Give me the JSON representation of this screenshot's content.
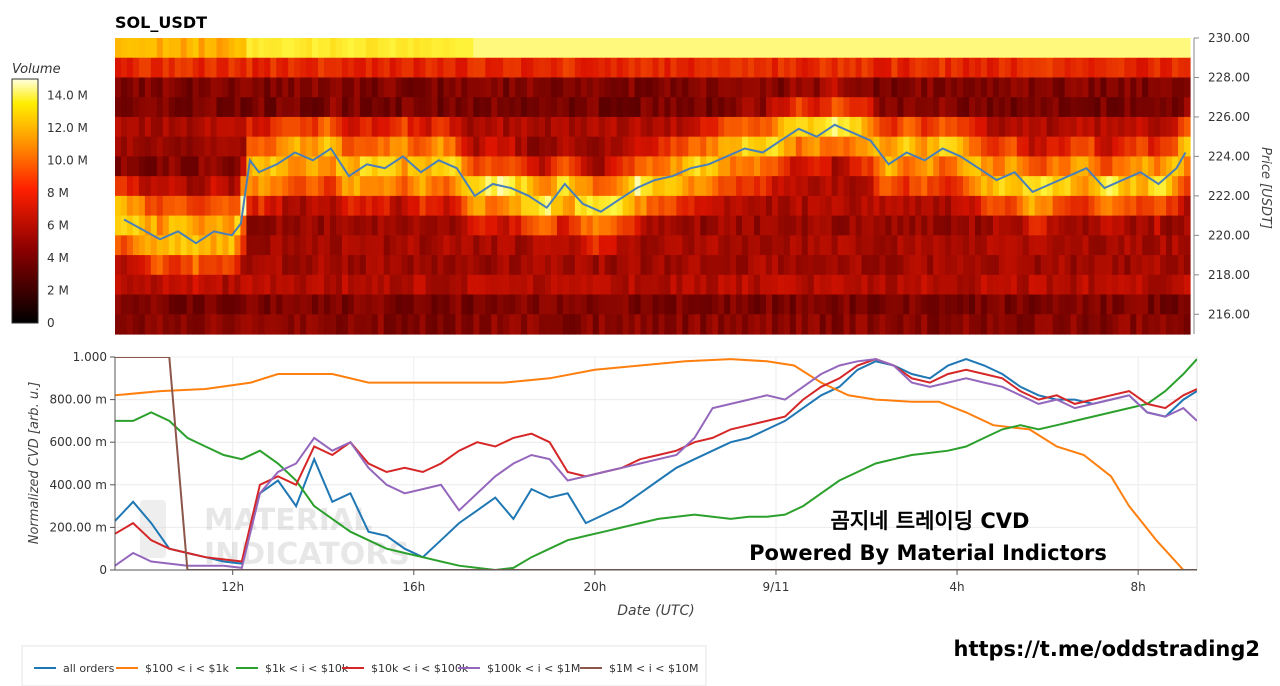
{
  "title": "SOL_USDT",
  "watermark": {
    "line1": "MATERIAL",
    "line2": "INDICATORS"
  },
  "overlay": {
    "line1": "곰지네 트레이딩 CVD",
    "line2": "Powered By Material Indictors"
  },
  "link": "https://t.me/oddstrading2",
  "colors": {
    "all_orders": "#1f77b4",
    "s100_1k": "#ff7f0e",
    "s1k_10k": "#2ca02c",
    "s10k_100k": "#d62728",
    "s100k_1m": "#9467bd",
    "s1m_10m": "#8c564b"
  },
  "chart_data": [
    {
      "type": "heatmap",
      "title": "SOL_USDT",
      "colorbar": {
        "label": "Volume",
        "ticks": [
          "14.0 M",
          "12.0 M",
          "10.0 M",
          "8 M",
          "6 M",
          "4 M",
          "2 M",
          "0"
        ],
        "range": [
          0,
          15
        ]
      },
      "ylabel": "Price [USDT]",
      "ylim": [
        215,
        230
      ],
      "yticks": [
        "230.00",
        "228.00",
        "226.00",
        "224.00",
        "222.00",
        "220.00",
        "218.00",
        "216.00"
      ],
      "price_line": {
        "name": "price",
        "x": [
          9.6,
          10.0,
          10.4,
          10.8,
          11.2,
          11.6,
          12.0,
          12.2,
          12.4,
          12.6,
          13.0,
          13.4,
          13.8,
          14.2,
          14.6,
          15.0,
          15.4,
          15.8,
          16.2,
          16.6,
          17.0,
          17.4,
          17.8,
          18.2,
          18.6,
          19.0,
          19.4,
          19.8,
          20.2,
          20.6,
          21.0,
          21.4,
          21.8,
          22.2,
          22.6,
          23.0,
          23.4,
          23.8,
          24.2,
          24.6,
          25.0,
          25.4,
          25.8,
          26.2,
          26.6,
          27.0,
          27.4,
          27.8,
          28.2,
          28.6,
          29.0,
          29.4,
          29.8,
          30.2,
          30.6,
          31.0,
          31.4,
          31.8,
          32.2,
          32.6,
          33.0,
          33.2
        ],
        "y": [
          220.8,
          220.3,
          219.8,
          220.2,
          219.6,
          220.2,
          220.0,
          220.6,
          223.8,
          223.2,
          223.6,
          224.2,
          223.8,
          224.4,
          223.0,
          223.6,
          223.4,
          224.0,
          223.2,
          223.8,
          223.4,
          222.0,
          222.6,
          222.4,
          222.0,
          221.4,
          222.6,
          221.6,
          221.2,
          221.8,
          222.4,
          222.8,
          223.0,
          223.4,
          223.6,
          224.0,
          224.4,
          224.2,
          224.8,
          225.4,
          225.0,
          225.6,
          225.2,
          224.8,
          223.6,
          224.2,
          223.8,
          224.4,
          224.0,
          223.4,
          222.8,
          223.2,
          222.2,
          222.6,
          223.0,
          223.4,
          222.4,
          222.8,
          223.2,
          222.6,
          223.4,
          224.2
        ]
      }
    },
    {
      "type": "line",
      "xlabel": "Date (UTC)",
      "ylabel": "Normalized CVD [arb. u.]",
      "xlim": [
        9.4,
        33.3
      ],
      "ylim": [
        0,
        1
      ],
      "xticks": [
        {
          "value": 12,
          "label": "12h"
        },
        {
          "value": 16,
          "label": "16h"
        },
        {
          "value": 20,
          "label": "20h"
        },
        {
          "value": 24,
          "label": "9/11"
        },
        {
          "value": 28,
          "label": "4h"
        },
        {
          "value": 32,
          "label": "8h"
        }
      ],
      "yticks": [
        {
          "value": 1.0,
          "label": "1.000"
        },
        {
          "value": 0.8,
          "label": "800.00 m"
        },
        {
          "value": 0.6,
          "label": "600.00 m"
        },
        {
          "value": 0.4,
          "label": "400.00 m"
        },
        {
          "value": 0.2,
          "label": "200.00 m"
        },
        {
          "value": 0.0,
          "label": "0"
        }
      ],
      "legend_position": "bottom",
      "series": [
        {
          "name": "all orders",
          "color": "#1f77b4",
          "x": [
            9.4,
            9.8,
            10.2,
            10.6,
            11.0,
            11.4,
            11.8,
            12.2,
            12.6,
            13.0,
            13.4,
            13.8,
            14.2,
            14.6,
            15.0,
            15.4,
            15.8,
            16.2,
            16.6,
            17.0,
            17.4,
            17.8,
            18.2,
            18.6,
            19.0,
            19.4,
            19.8,
            20.2,
            20.6,
            21.0,
            21.4,
            21.8,
            22.2,
            22.6,
            23.0,
            23.4,
            23.8,
            24.2,
            24.6,
            25.0,
            25.4,
            25.8,
            26.2,
            26.6,
            27.0,
            27.4,
            27.8,
            28.2,
            28.6,
            29.0,
            29.4,
            29.8,
            30.2,
            30.6,
            31.0,
            31.4,
            31.8,
            32.2,
            32.6,
            33.0,
            33.3
          ],
          "y": [
            0.23,
            0.32,
            0.22,
            0.1,
            0.08,
            0.06,
            0.04,
            0.03,
            0.36,
            0.42,
            0.3,
            0.52,
            0.32,
            0.36,
            0.18,
            0.16,
            0.1,
            0.06,
            0.14,
            0.22,
            0.28,
            0.34,
            0.24,
            0.38,
            0.34,
            0.36,
            0.22,
            0.26,
            0.3,
            0.36,
            0.42,
            0.48,
            0.52,
            0.56,
            0.6,
            0.62,
            0.66,
            0.7,
            0.76,
            0.82,
            0.86,
            0.94,
            0.98,
            0.96,
            0.92,
            0.9,
            0.96,
            0.99,
            0.96,
            0.92,
            0.86,
            0.82,
            0.8,
            0.8,
            0.78,
            0.8,
            0.82,
            0.74,
            0.72,
            0.8,
            0.84
          ]
        },
        {
          "name": "$100 < i < $1k",
          "color": "#ff7f0e",
          "x": [
            9.4,
            10.4,
            11.4,
            12.4,
            13.0,
            13.6,
            14.2,
            15.0,
            16.0,
            17.0,
            18.0,
            19.0,
            20.0,
            21.0,
            22.0,
            23.0,
            23.8,
            24.4,
            25.0,
            25.6,
            26.2,
            27.0,
            27.6,
            28.2,
            28.8,
            29.6,
            30.2,
            30.8,
            31.4,
            31.8,
            32.4,
            33.0
          ],
          "y": [
            0.82,
            0.84,
            0.85,
            0.88,
            0.92,
            0.92,
            0.92,
            0.88,
            0.88,
            0.88,
            0.88,
            0.9,
            0.94,
            0.96,
            0.98,
            0.99,
            0.98,
            0.96,
            0.88,
            0.82,
            0.8,
            0.79,
            0.79,
            0.74,
            0.68,
            0.66,
            0.58,
            0.54,
            0.44,
            0.3,
            0.14,
            0.0
          ]
        },
        {
          "name": "$1k < i < $10k",
          "color": "#2ca02c",
          "x": [
            9.4,
            9.8,
            10.2,
            10.6,
            11.0,
            11.4,
            11.8,
            12.2,
            12.6,
            13.0,
            13.4,
            13.8,
            14.2,
            14.6,
            15.0,
            15.4,
            15.8,
            16.2,
            16.6,
            17.0,
            17.4,
            17.8,
            18.2,
            18.6,
            19.0,
            19.4,
            19.8,
            20.2,
            20.6,
            21.0,
            21.4,
            21.8,
            22.2,
            22.6,
            23.0,
            23.4,
            23.8,
            24.2,
            24.6,
            25.0,
            25.4,
            25.8,
            26.2,
            26.6,
            27.0,
            27.4,
            27.8,
            28.2,
            28.6,
            29.0,
            29.4,
            29.8,
            30.2,
            30.6,
            31.0,
            31.4,
            31.8,
            32.2,
            32.6,
            33.0,
            33.3
          ],
          "y": [
            0.7,
            0.7,
            0.74,
            0.7,
            0.62,
            0.58,
            0.54,
            0.52,
            0.56,
            0.5,
            0.42,
            0.3,
            0.24,
            0.18,
            0.14,
            0.1,
            0.08,
            0.06,
            0.04,
            0.02,
            0.01,
            0.0,
            0.01,
            0.06,
            0.1,
            0.14,
            0.16,
            0.18,
            0.2,
            0.22,
            0.24,
            0.25,
            0.26,
            0.25,
            0.24,
            0.25,
            0.25,
            0.26,
            0.3,
            0.36,
            0.42,
            0.46,
            0.5,
            0.52,
            0.54,
            0.55,
            0.56,
            0.58,
            0.62,
            0.66,
            0.68,
            0.66,
            0.68,
            0.7,
            0.72,
            0.74,
            0.76,
            0.78,
            0.84,
            0.92,
            0.99
          ]
        },
        {
          "name": "$10k < i < $100k",
          "color": "#d62728",
          "x": [
            9.4,
            9.8,
            10.2,
            10.6,
            11.0,
            11.4,
            11.8,
            12.2,
            12.6,
            13.0,
            13.4,
            13.8,
            14.2,
            14.6,
            15.0,
            15.4,
            15.8,
            16.2,
            16.6,
            17.0,
            17.4,
            17.8,
            18.2,
            18.6,
            19.0,
            19.4,
            19.8,
            20.2,
            20.6,
            21.0,
            21.4,
            21.8,
            22.2,
            22.6,
            23.0,
            23.4,
            23.8,
            24.2,
            24.6,
            25.0,
            25.4,
            25.8,
            26.2,
            26.6,
            27.0,
            27.4,
            27.8,
            28.2,
            28.6,
            29.0,
            29.4,
            29.8,
            30.2,
            30.6,
            31.0,
            31.4,
            31.8,
            32.2,
            32.6,
            33.0,
            33.3
          ],
          "y": [
            0.17,
            0.22,
            0.14,
            0.1,
            0.08,
            0.06,
            0.05,
            0.04,
            0.4,
            0.44,
            0.4,
            0.58,
            0.54,
            0.6,
            0.5,
            0.46,
            0.48,
            0.46,
            0.5,
            0.56,
            0.6,
            0.58,
            0.62,
            0.64,
            0.6,
            0.46,
            0.44,
            0.46,
            0.48,
            0.52,
            0.54,
            0.56,
            0.6,
            0.62,
            0.66,
            0.68,
            0.7,
            0.72,
            0.8,
            0.86,
            0.9,
            0.96,
            0.99,
            0.96,
            0.9,
            0.88,
            0.92,
            0.94,
            0.92,
            0.9,
            0.84,
            0.8,
            0.82,
            0.78,
            0.8,
            0.82,
            0.84,
            0.78,
            0.76,
            0.82,
            0.85
          ]
        },
        {
          "name": "$100k < i < $1M",
          "color": "#9467bd",
          "x": [
            9.4,
            9.8,
            10.2,
            10.6,
            11.0,
            11.4,
            11.8,
            12.2,
            12.6,
            13.0,
            13.4,
            13.8,
            14.2,
            14.6,
            15.0,
            15.4,
            15.8,
            16.2,
            16.6,
            17.0,
            17.4,
            17.8,
            18.2,
            18.6,
            19.0,
            19.4,
            19.8,
            20.2,
            20.6,
            21.0,
            21.4,
            21.8,
            22.2,
            22.6,
            23.0,
            23.4,
            23.8,
            24.2,
            24.6,
            25.0,
            25.4,
            25.8,
            26.2,
            26.6,
            27.0,
            27.4,
            27.8,
            28.2,
            28.6,
            29.0,
            29.4,
            29.8,
            30.2,
            30.6,
            31.0,
            31.4,
            31.8,
            32.2,
            32.6,
            33.0,
            33.3
          ],
          "y": [
            0.02,
            0.08,
            0.04,
            0.03,
            0.02,
            0.02,
            0.02,
            0.01,
            0.36,
            0.46,
            0.5,
            0.62,
            0.56,
            0.6,
            0.48,
            0.4,
            0.36,
            0.38,
            0.4,
            0.28,
            0.36,
            0.44,
            0.5,
            0.54,
            0.52,
            0.42,
            0.44,
            0.46,
            0.48,
            0.5,
            0.52,
            0.54,
            0.62,
            0.76,
            0.78,
            0.8,
            0.82,
            0.8,
            0.86,
            0.92,
            0.96,
            0.98,
            0.99,
            0.96,
            0.88,
            0.86,
            0.88,
            0.9,
            0.88,
            0.86,
            0.82,
            0.78,
            0.8,
            0.76,
            0.78,
            0.8,
            0.82,
            0.74,
            0.72,
            0.76,
            0.7
          ]
        },
        {
          "name": "$1M < i < $10M",
          "color": "#8c564b",
          "x": [
            9.4,
            10.0,
            10.6,
            10.8,
            11.0,
            11.2,
            12.0,
            14.0,
            16.0,
            20.0,
            24.0,
            28.0,
            33.3
          ],
          "y": [
            1.0,
            1.0,
            1.0,
            0.5,
            0.0,
            0.0,
            0.0,
            0.0,
            0.0,
            0.0,
            0.0,
            0.0,
            0.0
          ]
        }
      ]
    }
  ]
}
